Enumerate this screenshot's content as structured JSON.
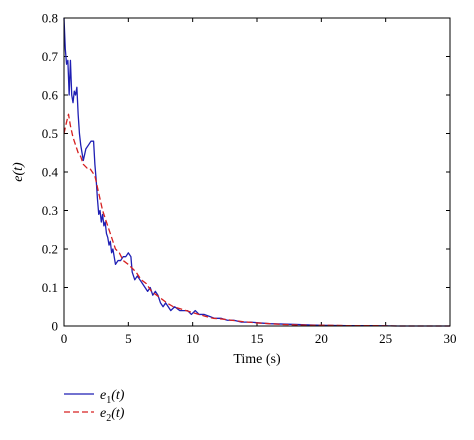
{
  "chart_data": {
    "type": "line",
    "xlabel": "Time (s)",
    "ylabel": "e(t)",
    "xlim": [
      0,
      30
    ],
    "ylim": [
      0,
      0.8
    ],
    "xticks": [
      "0",
      "5",
      "10",
      "15",
      "20",
      "25",
      "30"
    ],
    "yticks": [
      "0",
      "0.1",
      "0.2",
      "0.3",
      "0.4",
      "0.5",
      "0.6",
      "0.7",
      "0.8"
    ],
    "grid": false,
    "legend_position": "bottom-left, below axes",
    "series": [
      {
        "name": "e1(t)",
        "legend_label": {
          "base": "e",
          "sub": "1",
          "arg": "(t)"
        },
        "color": "#1f1fb4",
        "dash": "solid",
        "points": [
          [
            0,
            0.8
          ],
          [
            0.1,
            0.72
          ],
          [
            0.2,
            0.68
          ],
          [
            0.3,
            0.69
          ],
          [
            0.4,
            0.6
          ],
          [
            0.5,
            0.69
          ],
          [
            0.6,
            0.6
          ],
          [
            0.7,
            0.58
          ],
          [
            0.8,
            0.61
          ],
          [
            0.9,
            0.6
          ],
          [
            1.0,
            0.62
          ],
          [
            1.1,
            0.55
          ],
          [
            1.2,
            0.5
          ],
          [
            1.3,
            0.47
          ],
          [
            1.4,
            0.45
          ],
          [
            1.5,
            0.43
          ],
          [
            1.7,
            0.46
          ],
          [
            1.9,
            0.47
          ],
          [
            2.1,
            0.48
          ],
          [
            2.3,
            0.48
          ],
          [
            2.4,
            0.42
          ],
          [
            2.5,
            0.38
          ],
          [
            2.6,
            0.33
          ],
          [
            2.7,
            0.29
          ],
          [
            2.8,
            0.3
          ],
          [
            2.9,
            0.27
          ],
          [
            3.0,
            0.29
          ],
          [
            3.1,
            0.26
          ],
          [
            3.2,
            0.27
          ],
          [
            3.3,
            0.24
          ],
          [
            3.4,
            0.23
          ],
          [
            3.5,
            0.21
          ],
          [
            3.6,
            0.22
          ],
          [
            3.7,
            0.19
          ],
          [
            3.8,
            0.2
          ],
          [
            3.9,
            0.18
          ],
          [
            4.0,
            0.16
          ],
          [
            4.2,
            0.17
          ],
          [
            4.4,
            0.17
          ],
          [
            4.6,
            0.18
          ],
          [
            4.8,
            0.18
          ],
          [
            5.0,
            0.19
          ],
          [
            5.2,
            0.18
          ],
          [
            5.3,
            0.14
          ],
          [
            5.5,
            0.12
          ],
          [
            5.7,
            0.13
          ],
          [
            5.9,
            0.12
          ],
          [
            6.1,
            0.11
          ],
          [
            6.3,
            0.1
          ],
          [
            6.5,
            0.09
          ],
          [
            6.7,
            0.1
          ],
          [
            6.9,
            0.08
          ],
          [
            7.1,
            0.09
          ],
          [
            7.3,
            0.08
          ],
          [
            7.5,
            0.06
          ],
          [
            7.7,
            0.05
          ],
          [
            7.9,
            0.06
          ],
          [
            8.1,
            0.05
          ],
          [
            8.3,
            0.04
          ],
          [
            8.6,
            0.05
          ],
          [
            9.0,
            0.04
          ],
          [
            9.3,
            0.04
          ],
          [
            9.6,
            0.04
          ],
          [
            9.9,
            0.03
          ],
          [
            10.2,
            0.04
          ],
          [
            10.5,
            0.03
          ],
          [
            10.9,
            0.03
          ],
          [
            11.3,
            0.025
          ],
          [
            11.7,
            0.02
          ],
          [
            12.2,
            0.02
          ],
          [
            12.7,
            0.015
          ],
          [
            13.2,
            0.015
          ],
          [
            13.8,
            0.01
          ],
          [
            14.5,
            0.01
          ],
          [
            15.2,
            0.008
          ],
          [
            16.0,
            0.006
          ],
          [
            17.0,
            0.005
          ],
          [
            18.0,
            0.004
          ],
          [
            19.0,
            0.003
          ],
          [
            20.0,
            0.002
          ],
          [
            22.0,
            0.001
          ],
          [
            24.0,
            0.001
          ],
          [
            26.0,
            0.0
          ],
          [
            28.0,
            0.0
          ],
          [
            30.0,
            0.0
          ]
        ]
      },
      {
        "name": "e2(t)",
        "legend_label": {
          "base": "e",
          "sub": "2",
          "arg": "(t)"
        },
        "color": "#d62020",
        "dash": "dashed",
        "points": [
          [
            0,
            0.5
          ],
          [
            0.2,
            0.53
          ],
          [
            0.35,
            0.55
          ],
          [
            0.5,
            0.52
          ],
          [
            0.7,
            0.49
          ],
          [
            0.9,
            0.47
          ],
          [
            1.1,
            0.45
          ],
          [
            1.3,
            0.44
          ],
          [
            1.5,
            0.42
          ],
          [
            1.8,
            0.41
          ],
          [
            2.0,
            0.41
          ],
          [
            2.2,
            0.4
          ],
          [
            2.4,
            0.39
          ],
          [
            2.6,
            0.36
          ],
          [
            2.8,
            0.33
          ],
          [
            3.0,
            0.3
          ],
          [
            3.2,
            0.28
          ],
          [
            3.4,
            0.26
          ],
          [
            3.6,
            0.24
          ],
          [
            3.8,
            0.22
          ],
          [
            4.0,
            0.2
          ],
          [
            4.3,
            0.19
          ],
          [
            4.6,
            0.17
          ],
          [
            5.0,
            0.16
          ],
          [
            5.3,
            0.15
          ],
          [
            5.6,
            0.14
          ],
          [
            6.0,
            0.12
          ],
          [
            6.4,
            0.11
          ],
          [
            6.8,
            0.09
          ],
          [
            7.2,
            0.08
          ],
          [
            7.6,
            0.07
          ],
          [
            8.0,
            0.06
          ],
          [
            8.5,
            0.05
          ],
          [
            9.0,
            0.045
          ],
          [
            9.5,
            0.04
          ],
          [
            10.0,
            0.035
          ],
          [
            10.5,
            0.03
          ],
          [
            11.0,
            0.025
          ],
          [
            11.6,
            0.02
          ],
          [
            12.3,
            0.018
          ],
          [
            13.0,
            0.015
          ],
          [
            14.0,
            0.011
          ],
          [
            15.0,
            0.008
          ],
          [
            16.0,
            0.006
          ],
          [
            17.0,
            0.004
          ],
          [
            18.0,
            0.003
          ],
          [
            19.0,
            0.002
          ],
          [
            20.0,
            0.002
          ],
          [
            22.0,
            0.001
          ],
          [
            24.0,
            0.001
          ],
          [
            26.0,
            0.0
          ],
          [
            28.0,
            0.0
          ],
          [
            30.0,
            0.0
          ]
        ]
      }
    ]
  }
}
